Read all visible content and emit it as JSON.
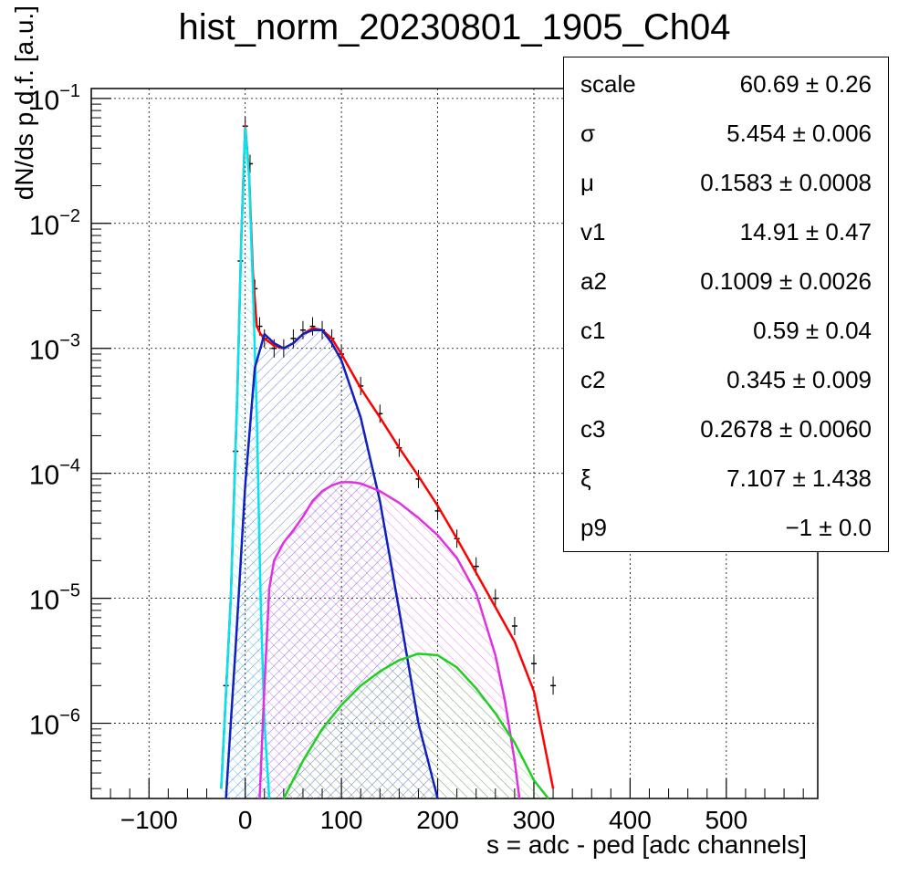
{
  "chart_data": {
    "type": "line",
    "title": "hist_norm_20230801_1905_Ch04",
    "xlabel": "s = adc - ped [adc channels]",
    "ylabel": "dN/ds p.d.f. [a.u.]",
    "xlim": [
      -160,
      595
    ],
    "ylim": [
      2.5e-07,
      0.12
    ],
    "yscale": "log",
    "grid": true,
    "xticks": [
      -100,
      0,
      100,
      200,
      300,
      400,
      500
    ],
    "xtick_labels": [
      "−100",
      "0",
      "100",
      "200",
      "300",
      "400",
      "500"
    ],
    "yticks": [
      1e-06,
      1e-05,
      0.0001,
      0.001,
      0.01,
      0.1
    ],
    "ytick_labels": [
      {
        "base": "10",
        "exp": "−6"
      },
      {
        "base": "10",
        "exp": "−5"
      },
      {
        "base": "10",
        "exp": "−4"
      },
      {
        "base": "10",
        "exp": "−3"
      },
      {
        "base": "10",
        "exp": "−2"
      },
      {
        "base": "10",
        "exp": "−1"
      }
    ],
    "histogram": {
      "color": "#000000",
      "x": [
        -20,
        -10,
        -5,
        0,
        5,
        10,
        15,
        20,
        30,
        40,
        50,
        60,
        70,
        80,
        90,
        100,
        120,
        140,
        160,
        180,
        200,
        220,
        240,
        260,
        280,
        300,
        320
      ],
      "y": [
        2e-06,
        0.00015,
        0.005,
        0.06,
        0.03,
        0.003,
        0.0015,
        0.0012,
        0.001,
        0.001,
        0.0012,
        0.0014,
        0.0015,
        0.0014,
        0.0012,
        0.0009,
        0.0005,
        0.0003,
        0.00016,
        9e-05,
        5e-05,
        3e-05,
        1.8e-05,
        1e-05,
        6e-06,
        3e-06,
        2e-06
      ]
    },
    "series": [
      {
        "color": "#ff0000",
        "x": [
          -25,
          -15,
          -8,
          -4,
          0,
          4,
          8,
          12,
          16,
          20,
          30,
          40,
          50,
          60,
          70,
          80,
          90,
          100,
          120,
          140,
          160,
          180,
          200,
          220,
          240,
          260,
          280,
          300,
          320
        ],
        "y": [
          3e-07,
          1e-05,
          0.0005,
          0.008,
          0.06,
          0.025,
          0.004,
          0.0015,
          0.0013,
          0.0012,
          0.00105,
          0.001,
          0.0011,
          0.0013,
          0.00145,
          0.0014,
          0.0012,
          0.0009,
          0.00048,
          0.00028,
          0.00016,
          9.5e-05,
          5.5e-05,
          3e-05,
          1.6e-05,
          8.5e-06,
          4.5e-06,
          1.8e-06,
          3e-07
        ]
      },
      {
        "color": "#00e5ee",
        "x": [
          -25,
          -15,
          -8,
          -4,
          0,
          4,
          8,
          12,
          16,
          20,
          25
        ],
        "y": [
          3e-07,
          1e-05,
          0.0005,
          0.008,
          0.058,
          0.024,
          0.003,
          0.0003,
          1e-05,
          1e-06,
          2.5e-07
        ]
      },
      {
        "color": "#1020c0",
        "x": [
          -20,
          -10,
          0,
          10,
          20,
          30,
          40,
          50,
          60,
          70,
          80,
          90,
          100,
          120,
          140,
          160,
          180,
          200
        ],
        "y": [
          2.5e-07,
          4e-06,
          8e-05,
          0.0007,
          0.0013,
          0.0011,
          0.001,
          0.0011,
          0.0013,
          0.0014,
          0.0014,
          0.0011,
          0.0008,
          0.00028,
          6e-05,
          8e-06,
          1e-06,
          2.5e-07
        ]
      },
      {
        "color": "#e030e0",
        "x": [
          15,
          20,
          25,
          30,
          40,
          50,
          60,
          70,
          80,
          90,
          100,
          110,
          120,
          140,
          160,
          180,
          200,
          220,
          240,
          260,
          270,
          280,
          285
        ],
        "y": [
          2.5e-07,
          2e-06,
          1.2e-05,
          2e-05,
          2.8e-05,
          3.5e-05,
          4.5e-05,
          6e-05,
          7.2e-05,
          8e-05,
          8.5e-05,
          8.5e-05,
          8.3e-05,
          7.2e-05,
          5.8e-05,
          4.4e-05,
          3.2e-05,
          2.1e-05,
          1.1e-05,
          3.5e-06,
          1.5e-06,
          5e-07,
          2.5e-07
        ]
      },
      {
        "color": "#20d020",
        "x": [
          40,
          60,
          80,
          100,
          120,
          140,
          160,
          180,
          200,
          220,
          240,
          260,
          280,
          300,
          315
        ],
        "y": [
          2.5e-07,
          5e-07,
          9e-07,
          1.4e-06,
          2e-06,
          2.6e-06,
          3.2e-06,
          3.6e-06,
          3.5e-06,
          2.8e-06,
          1.9e-06,
          1.2e-06,
          7e-07,
          3.5e-07,
          2.5e-07
        ]
      }
    ]
  },
  "stats": [
    {
      "name": "scale",
      "value": "60.69 ± 0.26"
    },
    {
      "name": "σ",
      "value": "5.454 ± 0.006"
    },
    {
      "name": "μ",
      "value": "0.1583 ± 0.0008"
    },
    {
      "name": "v1",
      "value": "14.91 ± 0.47"
    },
    {
      "name": "a2",
      "value": "0.1009 ± 0.0026"
    },
    {
      "name": "c1",
      "value": "0.59 ± 0.04"
    },
    {
      "name": "c2",
      "value": "0.345 ± 0.009"
    },
    {
      "name": "c3",
      "value": "0.2678 ± 0.0060"
    },
    {
      "name": "ξ",
      "value": "7.107 ± 1.438"
    },
    {
      "name": "p9",
      "value": "−1 ± 0.0"
    }
  ]
}
